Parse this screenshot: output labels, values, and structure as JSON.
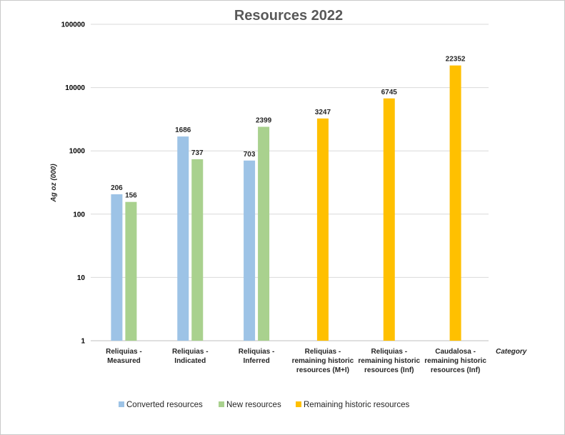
{
  "chart_data": {
    "type": "bar",
    "title": "Resources 2022",
    "xlabel": "Category",
    "ylabel": "Ag oz (000)",
    "y_scale": "log",
    "ylim": [
      1,
      100000
    ],
    "y_ticks": [
      "100000",
      "10000",
      "1000",
      "100",
      "10",
      "1"
    ],
    "grid": true,
    "legend_position": "bottom",
    "categories": [
      [
        "Reliquias -",
        "Measured"
      ],
      [
        "Reliquias -",
        "Indicated"
      ],
      [
        "Reliquias -",
        "Inferred"
      ],
      [
        "Reliquias -",
        "remaining historic",
        "resources (M+I)"
      ],
      [
        "Reliquias -",
        "remaining historic",
        "resources (Inf)"
      ],
      [
        "Caudalosa -",
        "remaining historic",
        "resources (Inf)"
      ]
    ],
    "series": [
      {
        "name": "Converted resources",
        "color": "#9dc3e6",
        "values": [
          206,
          1686,
          703,
          null,
          null,
          null
        ]
      },
      {
        "name": "New resources",
        "color": "#a9d18e",
        "values": [
          156,
          737,
          2399,
          null,
          null,
          null
        ]
      },
      {
        "name": "Remaining historic resources",
        "color": "#ffc000",
        "values": [
          null,
          null,
          null,
          3247,
          6745,
          22352
        ]
      }
    ]
  }
}
